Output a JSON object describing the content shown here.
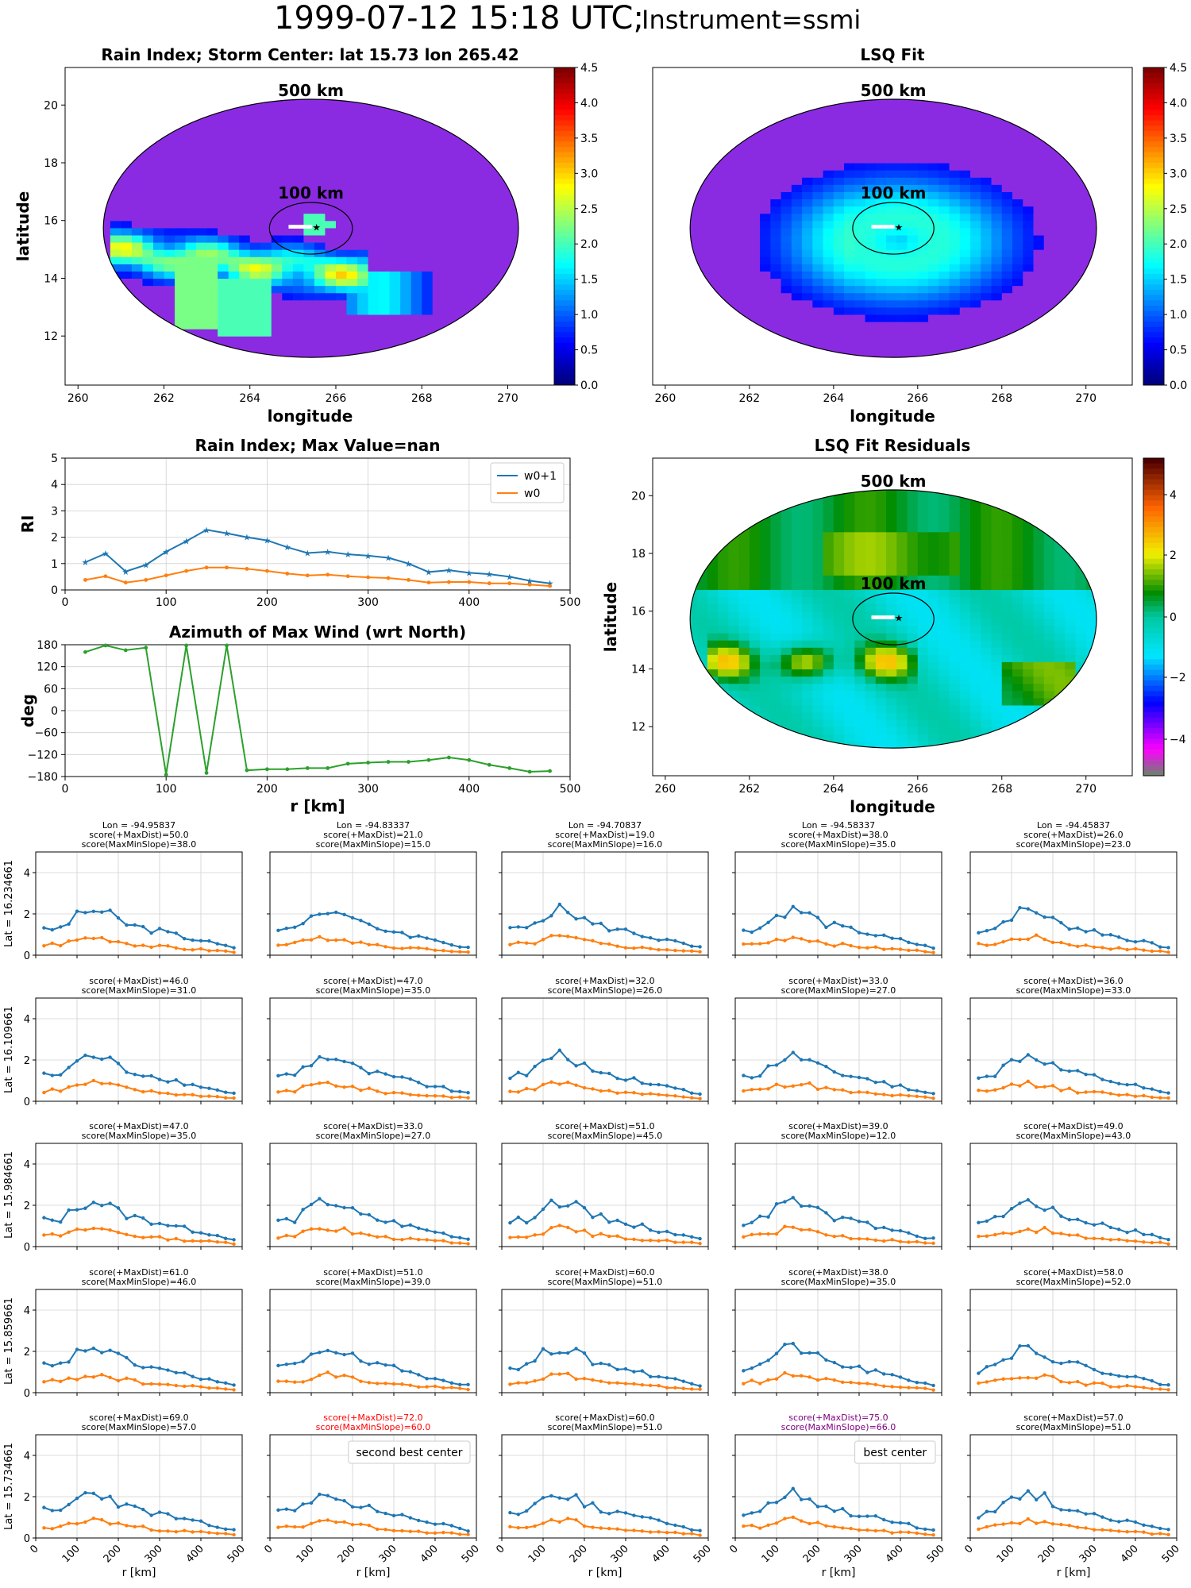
{
  "header": {
    "title": "1999-07-12 15:18 UTC;",
    "instrument": "Instrument=ssmi"
  },
  "colors": {
    "w0p1": "#1f77b4",
    "w0": "#ff7f0e",
    "azimuth": "#2ca02c",
    "red": "#ff0000",
    "purple": "#800080"
  },
  "maps": [
    {
      "title": "Rain Index; Storm Center: lat 15.73 lon 265.42",
      "xlabel": "longitude",
      "ylabel": "latitude",
      "colorbar": {
        "scheme": "jet",
        "ticks": [
          "0.0",
          "0.5",
          "1.0",
          "1.5",
          "2.0",
          "2.5",
          "3.0",
          "3.5",
          "4.0",
          "4.5"
        ]
      },
      "ring_labels": [
        "500 km",
        "100 km"
      ],
      "xticks": [
        "260",
        "262",
        "264",
        "266",
        "268",
        "270"
      ],
      "yticks": [
        "12",
        "14",
        "16",
        "18",
        "20"
      ]
    },
    {
      "title": "LSQ Fit",
      "xlabel": "longitude",
      "ylabel": "",
      "colorbar": {
        "scheme": "jet",
        "ticks": [
          "0.0",
          "0.5",
          "1.0",
          "1.5",
          "2.0",
          "2.5",
          "3.0",
          "3.5",
          "4.0",
          "4.5"
        ]
      },
      "ring_labels": [
        "500 km",
        "100 km"
      ],
      "xticks": [
        "260",
        "262",
        "264",
        "266",
        "268",
        "270"
      ],
      "yticks": []
    },
    {
      "title": "LSQ Fit Residuals",
      "xlabel": "longitude",
      "ylabel": "latitude",
      "colorbar": {
        "scheme": "residual",
        "ticks": [
          "4",
          "2",
          "0",
          "−2",
          "−4"
        ]
      },
      "ring_labels": [
        "500 km",
        "100 km"
      ],
      "xticks": [
        "260",
        "262",
        "264",
        "266",
        "268",
        "270"
      ],
      "yticks": [
        "12",
        "14",
        "16",
        "18",
        "20"
      ]
    }
  ],
  "chart_data": [
    {
      "type": "line",
      "title": "Rain Index; Max Value=nan",
      "ylabel": "RI",
      "xlabel": "",
      "ylim": [
        0,
        5
      ],
      "xlim": [
        0,
        500
      ],
      "xticks": [
        "0",
        "100",
        "200",
        "300",
        "400",
        "500"
      ],
      "yticks": [
        "0",
        "1",
        "2",
        "3",
        "4",
        "5"
      ],
      "legend": "top-right",
      "x": [
        20,
        40,
        60,
        80,
        100,
        120,
        140,
        160,
        180,
        200,
        220,
        240,
        260,
        280,
        300,
        320,
        340,
        360,
        380,
        400,
        420,
        440,
        460,
        480
      ],
      "series": [
        {
          "name": "w0+1",
          "values": [
            1.05,
            1.38,
            0.7,
            0.95,
            1.45,
            1.85,
            2.28,
            2.15,
            2.0,
            1.88,
            1.62,
            1.4,
            1.45,
            1.35,
            1.3,
            1.22,
            1.0,
            0.68,
            0.75,
            0.65,
            0.6,
            0.5,
            0.35,
            0.25
          ]
        },
        {
          "name": "w0",
          "values": [
            0.38,
            0.52,
            0.28,
            0.38,
            0.55,
            0.72,
            0.85,
            0.85,
            0.8,
            0.72,
            0.62,
            0.55,
            0.58,
            0.52,
            0.48,
            0.45,
            0.38,
            0.28,
            0.3,
            0.3,
            0.25,
            0.25,
            0.2,
            0.15
          ]
        }
      ]
    },
    {
      "type": "line",
      "title": "Azimuth of Max Wind (wrt North)",
      "ylabel": "deg",
      "xlabel": "r [km]",
      "ylim": [
        -180,
        180
      ],
      "xlim": [
        0,
        500
      ],
      "xticks": [
        "0",
        "100",
        "200",
        "300",
        "400",
        "500"
      ],
      "yticks": [
        "180",
        "120",
        "60",
        "0",
        "−60",
        "−120",
        "−180"
      ],
      "x": [
        20,
        40,
        60,
        80,
        100,
        120,
        140,
        160,
        180,
        200,
        220,
        240,
        260,
        280,
        300,
        320,
        340,
        360,
        380,
        400,
        420,
        440,
        460,
        480
      ],
      "series": [
        {
          "values": [
            160,
            178,
            165,
            172,
            -175,
            178,
            -170,
            178,
            -163,
            -160,
            -160,
            -157,
            -157,
            -145,
            -142,
            -140,
            -140,
            -135,
            -128,
            -135,
            -148,
            -157,
            -167,
            -165
          ]
        }
      ]
    },
    {
      "type": "line-grid",
      "xlabel": "r [km]",
      "ylim": [
        0,
        5
      ],
      "xlim": [
        0,
        500
      ],
      "xticks": [
        "0",
        "100",
        "200",
        "300",
        "400",
        "500"
      ],
      "yticks": [
        "0",
        "2",
        "4"
      ],
      "col_headers": [
        "Lon = -94.95837",
        "Lon = -94.83337",
        "Lon = -94.70837",
        "Lon = -94.58337",
        "Lon = -94.45837"
      ],
      "rows": [
        {
          "label": "Lat = 16.234661",
          "cells": [
            {
              "s1": "score(+MaxDist)=50.0",
              "s2": "score(MaxMinSlope)=38.0"
            },
            {
              "s1": "score(+MaxDist)=21.0",
              "s2": "score(MaxMinSlope)=15.0"
            },
            {
              "s1": "score(+MaxDist)=19.0",
              "s2": "score(MaxMinSlope)=16.0"
            },
            {
              "s1": "score(+MaxDist)=38.0",
              "s2": "score(MaxMinSlope)=35.0"
            },
            {
              "s1": "score(+MaxDist)=26.0",
              "s2": "score(MaxMinSlope)=23.0"
            }
          ]
        },
        {
          "label": "Lat = 16.109661",
          "cells": [
            {
              "s1": "score(+MaxDist)=46.0",
              "s2": "score(MaxMinSlope)=31.0"
            },
            {
              "s1": "score(+MaxDist)=47.0",
              "s2": "score(MaxMinSlope)=35.0"
            },
            {
              "s1": "score(+MaxDist)=32.0",
              "s2": "score(MaxMinSlope)=26.0"
            },
            {
              "s1": "score(+MaxDist)=33.0",
              "s2": "score(MaxMinSlope)=27.0"
            },
            {
              "s1": "score(+MaxDist)=36.0",
              "s2": "score(MaxMinSlope)=33.0"
            }
          ]
        },
        {
          "label": "Lat = 15.984661",
          "cells": [
            {
              "s1": "score(+MaxDist)=47.0",
              "s2": "score(MaxMinSlope)=35.0"
            },
            {
              "s1": "score(+MaxDist)=33.0",
              "s2": "score(MaxMinSlope)=27.0"
            },
            {
              "s1": "score(+MaxDist)=51.0",
              "s2": "score(MaxMinSlope)=45.0"
            },
            {
              "s1": "score(+MaxDist)=39.0",
              "s2": "score(MaxMinSlope)=12.0"
            },
            {
              "s1": "score(+MaxDist)=49.0",
              "s2": "score(MaxMinSlope)=43.0"
            }
          ]
        },
        {
          "label": "Lat = 15.859661",
          "cells": [
            {
              "s1": "score(+MaxDist)=61.0",
              "s2": "score(MaxMinSlope)=46.0"
            },
            {
              "s1": "score(+MaxDist)=51.0",
              "s2": "score(MaxMinSlope)=39.0"
            },
            {
              "s1": "score(+MaxDist)=60.0",
              "s2": "score(MaxMinSlope)=51.0"
            },
            {
              "s1": "score(+MaxDist)=38.0",
              "s2": "score(MaxMinSlope)=35.0"
            },
            {
              "s1": "score(+MaxDist)=58.0",
              "s2": "score(MaxMinSlope)=52.0"
            }
          ]
        },
        {
          "label": "Lat = 15.734661",
          "cells": [
            {
              "s1": "score(+MaxDist)=69.0",
              "s2": "score(MaxMinSlope)=57.0"
            },
            {
              "s1": "score(+MaxDist)=72.0",
              "s2": "score(MaxMinSlope)=60.0",
              "color": "red",
              "note": "second best center"
            },
            {
              "s1": "score(+MaxDist)=60.0",
              "s2": "score(MaxMinSlope)=51.0"
            },
            {
              "s1": "score(+MaxDist)=75.0",
              "s2": "score(MaxMinSlope)=66.0",
              "color": "purple",
              "note": "best center"
            },
            {
              "s1": "score(+MaxDist)=57.0",
              "s2": "score(MaxMinSlope)=51.0"
            }
          ]
        }
      ],
      "x": [
        20,
        40,
        60,
        80,
        100,
        120,
        140,
        160,
        180,
        200,
        220,
        240,
        260,
        280,
        300,
        320,
        340,
        360,
        380,
        400,
        420,
        440,
        460,
        480
      ],
      "w0p1_base": [
        1.05,
        1.3,
        1.35,
        1.65,
        1.95,
        2.15,
        2.25,
        2.15,
        2.0,
        1.75,
        1.55,
        1.45,
        1.35,
        1.25,
        1.2,
        1.1,
        1.0,
        0.9,
        0.8,
        0.75,
        0.65,
        0.55,
        0.45,
        0.38
      ],
      "w0_base": [
        0.5,
        0.55,
        0.55,
        0.65,
        0.75,
        0.85,
        0.9,
        0.85,
        0.8,
        0.7,
        0.62,
        0.55,
        0.5,
        0.45,
        0.42,
        0.4,
        0.35,
        0.32,
        0.3,
        0.28,
        0.25,
        0.22,
        0.2,
        0.15
      ]
    }
  ]
}
